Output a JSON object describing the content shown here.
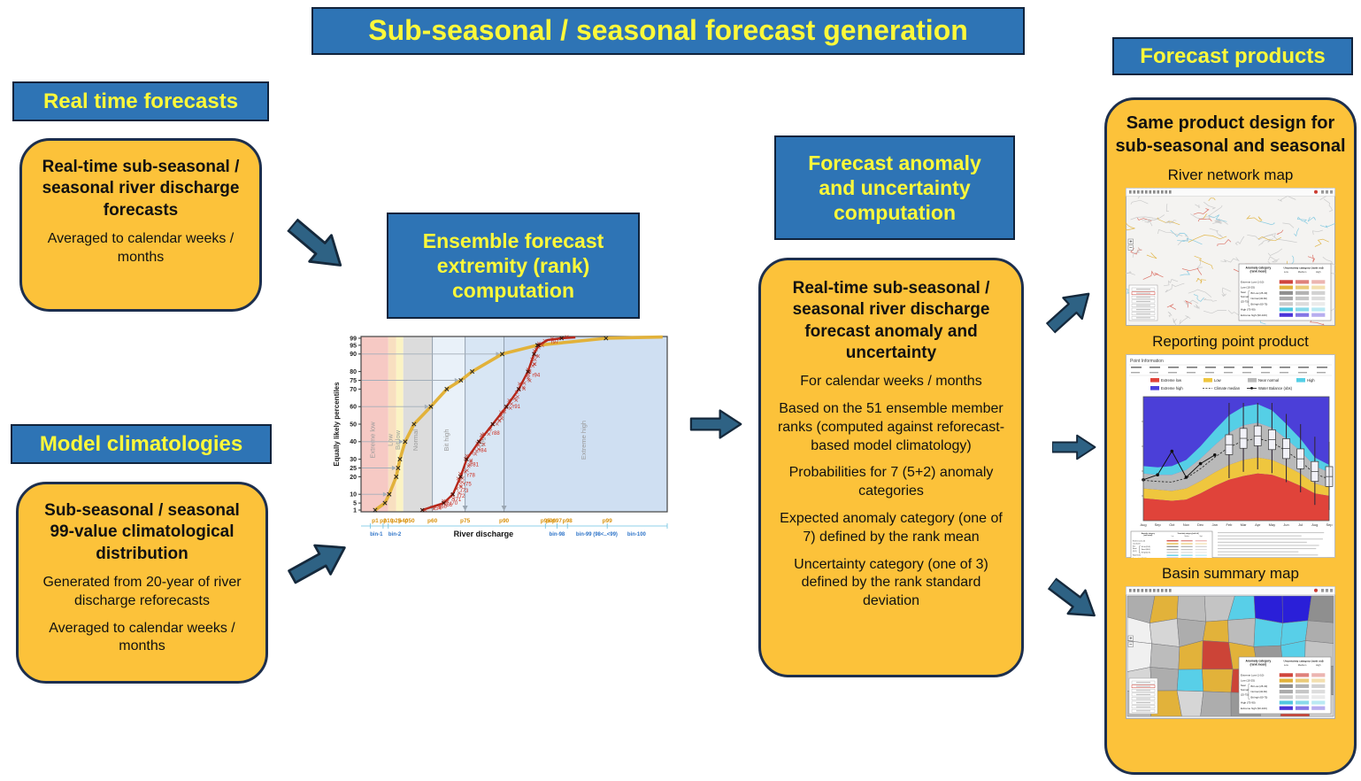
{
  "title": "Sub-seasonal / seasonal forecast generation",
  "real_time": {
    "header": "Real time forecasts",
    "card_title": "Real-time sub-seasonal / seasonal river discharge forecasts",
    "card_note": "Averaged to calendar weeks / months"
  },
  "model_clim": {
    "header": "Model climatologies",
    "card_title": "Sub-seasonal / seasonal 99-value climatological distribution",
    "card_lines": [
      "Generated from 20-year of river discharge reforecasts",
      "Averaged to calendar weeks / months"
    ]
  },
  "ensemble": {
    "header": "Ensemble forecast extremity (rank) computation"
  },
  "anomaly": {
    "header": "Forecast anomaly and uncertainty computation",
    "card_title": "Real-time sub-seasonal / seasonal river discharge forecast anomaly and uncertainty",
    "card_lines": [
      "For calendar weeks / months",
      "Based on the 51 ensemble member ranks (computed against reforecast-based model climatology)",
      "Probabilities for 7 (5+2) anomaly categories",
      "Expected anomaly category (one of 7) defined by the rank mean",
      "Uncertainty category (one of 3) defined by the rank standard deviation"
    ]
  },
  "products": {
    "header": "Forecast products",
    "card_title": "Same product design for sub-seasonal and seasonal",
    "captions": [
      "River network map",
      "Reporting point product",
      "Basin summary map"
    ]
  },
  "map_legend": {
    "anomaly_header": "Anomaly category (rank mean)",
    "uncertainty_header": "Uncertainty category (rank std)",
    "uncertainty_levels": [
      "Low",
      "Medium",
      "High"
    ],
    "near_normal_label": "Near Normal (25-75)",
    "rows": [
      {
        "label": "Extreme Low (1-10)",
        "color": "#d0453c"
      },
      {
        "label": "Low (10-25)",
        "color": "#e2b23a"
      },
      {
        "label": "Bit Low (25-40)",
        "color": "#8f8f8f"
      },
      {
        "label": "Normal (40-60)",
        "color": "#ababab"
      },
      {
        "label": "Bit high (60-75)",
        "color": "#cccccc"
      },
      {
        "label": "High (75-90)",
        "color": "#52c8e0"
      },
      {
        "label": "Extreme high (90-100)",
        "color": "#4a33d8"
      }
    ]
  },
  "reporting": {
    "panel_title": "Point Information",
    "legend": [
      {
        "label": "Extreme low",
        "color": "#e0433a",
        "type": "swatch"
      },
      {
        "label": "Low",
        "color": "#efc63e",
        "type": "swatch"
      },
      {
        "label": "Near normal",
        "color": "#b9b9b9",
        "type": "swatch"
      },
      {
        "label": "High",
        "color": "#55cfe6",
        "type": "swatch"
      },
      {
        "label": "Extreme high",
        "color": "#4b3fdc",
        "type": "swatch"
      },
      {
        "label": "Climate median",
        "color": "#333333",
        "type": "dashed"
      },
      {
        "label": "Water Balance (obs)",
        "color": "#111111",
        "type": "dotline"
      }
    ],
    "months": [
      "Aug",
      "Sep",
      "Oct",
      "Nov",
      "Dec",
      "Jan",
      "Feb",
      "Mar",
      "Apr",
      "May",
      "Jun",
      "Jul",
      "Aug",
      "Sep"
    ]
  },
  "colors": {
    "header_bg": "#2e74b5",
    "header_text": "#fdf83a",
    "card_bg": "#fcc23a",
    "card_border": "#1d2f4e",
    "arrow_fill": "#2e6284",
    "arrow_stroke": "#15293c"
  },
  "chart_data": {
    "type": "line",
    "xlabel": "River discharge",
    "ylabel": "Equally likely percentiles",
    "ylim": [
      0,
      100
    ],
    "yticks": [
      1,
      5,
      10,
      20,
      25,
      30,
      40,
      50,
      60,
      70,
      75,
      80,
      90,
      95,
      99
    ],
    "bands": [
      {
        "label": "Extreme low",
        "x0": 0.0,
        "x1": 0.089,
        "color": "#f6c9c4"
      },
      {
        "label": "Low",
        "x0": 0.089,
        "x1": 0.115,
        "color": "#f8dfc0"
      },
      {
        "label": "Bit low",
        "x0": 0.115,
        "x1": 0.138,
        "color": "#fbf3c4"
      },
      {
        "label": "Normal",
        "x0": 0.138,
        "x1": 0.233,
        "color": "#dcdcdc"
      },
      {
        "label": "Bit high",
        "x0": 0.233,
        "x1": 0.34,
        "color": "#e9f1f9"
      },
      {
        "label": "High",
        "x0": 0.34,
        "x1": 0.467,
        "color": "#d8e6f4"
      },
      {
        "label": "Extreme high",
        "x0": 0.467,
        "x1": 1.0,
        "color": "#cfdff2"
      }
    ],
    "x_percentile_ticks": [
      {
        "label": "p1",
        "x": 0.046
      },
      {
        "label": "p2",
        "x": 0.072
      },
      {
        "label": "p10",
        "x": 0.089
      },
      {
        "label": "p25",
        "x": 0.115
      },
      {
        "label": "p40",
        "x": 0.138
      },
      {
        "label": "p50",
        "x": 0.159
      },
      {
        "label": "p60",
        "x": 0.233
      },
      {
        "label": "p75",
        "x": 0.34
      },
      {
        "label": "p90",
        "x": 0.467
      },
      {
        "label": "p95",
        "x": 0.602
      },
      {
        "label": "p96",
        "x": 0.62
      },
      {
        "label": "p97",
        "x": 0.64
      },
      {
        "label": "p98",
        "x": 0.674
      },
      {
        "label": "p99",
        "x": 0.804
      }
    ],
    "x_bin_labels": [
      {
        "label": "bin-1",
        "x": 0.05
      },
      {
        "label": "bin-2",
        "x": 0.11
      },
      {
        "label": "bin-98",
        "x": 0.64
      },
      {
        "label": "bin-99 (98&lt;..&lt;99)",
        "x": 0.77
      },
      {
        "label": "bin-100",
        "x": 0.9
      }
    ],
    "guide_percentiles": [
      10,
      25,
      40,
      60,
      75,
      90
    ],
    "vertical_guides": [
      0.233,
      0.34,
      0.467
    ],
    "series": [
      {
        "name": "model climatology distribution",
        "color": "#e2b23a",
        "points": [
          [
            0.046,
            1
          ],
          [
            0.078,
            5
          ],
          [
            0.092,
            10
          ],
          [
            0.115,
            20
          ],
          [
            0.121,
            25
          ],
          [
            0.127,
            30
          ],
          [
            0.144,
            40
          ],
          [
            0.173,
            50
          ],
          [
            0.228,
            60
          ],
          [
            0.28,
            70
          ],
          [
            0.326,
            75
          ],
          [
            0.363,
            80
          ],
          [
            0.461,
            90
          ],
          [
            0.576,
            95
          ],
          [
            0.69,
            97
          ],
          [
            0.8,
            99
          ],
          [
            0.985,
            99.7
          ]
        ]
      },
      {
        "name": "ensemble forecast ranks",
        "color": "#b5271a",
        "points": [
          [
            0.2,
            1
          ],
          [
            0.235,
            3
          ],
          [
            0.27,
            5
          ],
          [
            0.3,
            10
          ],
          [
            0.325,
            20
          ],
          [
            0.335,
            25
          ],
          [
            0.345,
            30
          ],
          [
            0.385,
            40
          ],
          [
            0.43,
            50
          ],
          [
            0.475,
            60
          ],
          [
            0.515,
            70
          ],
          [
            0.545,
            80
          ],
          [
            0.565,
            90
          ],
          [
            0.58,
            95
          ],
          [
            0.61,
            98
          ],
          [
            0.655,
            99
          ],
          [
            0.7,
            99.5
          ]
        ]
      }
    ],
    "rank_labels": [
      "r54",
      "r60",
      "r66",
      "r70",
      "r71",
      "r72",
      "r73",
      "r75",
      "r78",
      "r81",
      "r84",
      "r88",
      "r91",
      "r94",
      "r97"
    ]
  }
}
